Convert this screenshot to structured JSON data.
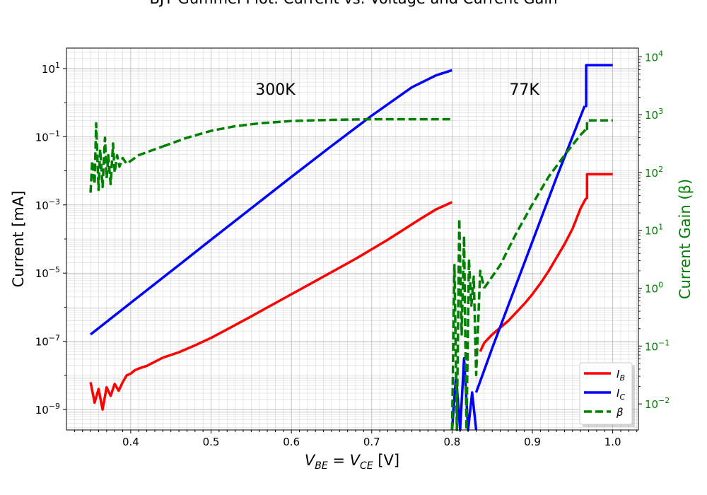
{
  "chart_data": {
    "type": "line",
    "title": "BJT Gummel Plot: Current vs. Voltage and Current Gain",
    "xlabel": "V_BE = V_CE [V]",
    "ylabel_left": "Current [mA]",
    "ylabel_right": "Current Gain (β)",
    "xlim": [
      0.32,
      1.032
    ],
    "ylim_left_log10": [
      -9.6,
      1.6
    ],
    "ylim_right_log10": [
      -2.45,
      4.15
    ],
    "x_scale": "linear",
    "y_scale": "log",
    "grid": true,
    "legend_position": "bottom-right",
    "x_ticks": [
      "0.4",
      "0.5",
      "0.6",
      "0.7",
      "0.8",
      "0.9",
      "1.0"
    ],
    "y_left_ticks": [
      {
        "exp": "1",
        "value": 1
      },
      {
        "exp": "−1",
        "value": -1
      },
      {
        "exp": "−3",
        "value": -3
      },
      {
        "exp": "−5",
        "value": -5
      },
      {
        "exp": "−7",
        "value": -7
      },
      {
        "exp": "−9",
        "value": -9
      }
    ],
    "y_right_ticks": [
      {
        "exp": "4",
        "value": 4
      },
      {
        "exp": "3",
        "value": 3
      },
      {
        "exp": "2",
        "value": 2
      },
      {
        "exp": "1",
        "value": 1
      },
      {
        "exp": "0",
        "value": 0
      },
      {
        "exp": "−1",
        "value": -1
      },
      {
        "exp": "−2",
        "value": -2
      }
    ],
    "annotations": [
      {
        "text": "300K",
        "x": 0.58,
        "y_log10": 0.4
      },
      {
        "text": "77K",
        "x": 0.89,
        "y_log10": 0.4
      }
    ],
    "series": [
      {
        "name": "I_B",
        "label_main": "I",
        "label_sub": "B",
        "axis": "left",
        "color": "#ff0000",
        "dash": "solid",
        "segments": [
          {
            "note": "300K noisy",
            "x": [
              0.35,
              0.355,
              0.36,
              0.365,
              0.37,
              0.375,
              0.38,
              0.385,
              0.39,
              0.395,
              0.4,
              0.405,
              0.41,
              0.42,
              0.43,
              0.44
            ],
            "y_log10": [
              -8.2,
              -8.8,
              -8.4,
              -9.0,
              -8.35,
              -8.6,
              -8.25,
              -8.45,
              -8.2,
              -8.0,
              -7.95,
              -7.85,
              -7.8,
              -7.72,
              -7.6,
              -7.48
            ]
          },
          {
            "note": "300K",
            "x": [
              0.44,
              0.46,
              0.48,
              0.5,
              0.52,
              0.55,
              0.58,
              0.6,
              0.62,
              0.65,
              0.68,
              0.7,
              0.72,
              0.74,
              0.76,
              0.78,
              0.8
            ],
            "y_log10": [
              -7.48,
              -7.32,
              -7.12,
              -6.9,
              -6.65,
              -6.27,
              -5.88,
              -5.62,
              -5.36,
              -4.97,
              -4.58,
              -4.3,
              -4.02,
              -3.72,
              -3.42,
              -3.13,
              -2.92
            ]
          },
          {
            "note": "77K",
            "x": [
              0.835,
              0.84,
              0.85,
              0.86,
              0.87,
              0.88,
              0.89,
              0.9,
              0.91,
              0.92,
              0.93,
              0.94,
              0.95,
              0.96,
              0.967
            ],
            "y_log10": [
              -7.3,
              -7.05,
              -6.8,
              -6.6,
              -6.4,
              -6.15,
              -5.9,
              -5.62,
              -5.3,
              -4.95,
              -4.55,
              -4.15,
              -3.7,
              -3.1,
              -2.8
            ]
          },
          {
            "note": "77K step",
            "x": [
              0.967,
              0.968,
              0.968,
              1.0
            ],
            "y_log10": [
              -2.8,
              -2.8,
              -2.1,
              -2.1
            ]
          }
        ]
      },
      {
        "name": "I_C",
        "label_main": "I",
        "label_sub": "C",
        "axis": "left",
        "color": "#0000ff",
        "dash": "solid",
        "segments": [
          {
            "note": "300K",
            "x": [
              0.35,
              0.4,
              0.45,
              0.5,
              0.55,
              0.6,
              0.65,
              0.7,
              0.75,
              0.78,
              0.8
            ],
            "y_log10": [
              -6.8,
              -5.87,
              -4.95,
              -4.02,
              -3.1,
              -2.18,
              -1.27,
              -0.38,
              0.45,
              0.8,
              0.95
            ]
          },
          {
            "note": "77K noisy",
            "x": [
              0.8,
              0.805,
              0.81,
              0.815,
              0.82,
              0.825,
              0.83
            ],
            "y_log10": [
              -9.6,
              -8.0,
              -9.6,
              -7.5,
              -9.6,
              -8.5,
              -9.6
            ]
          },
          {
            "note": "77K",
            "x": [
              0.83,
              0.85,
              0.87,
              0.89,
              0.91,
              0.93,
              0.95,
              0.965
            ],
            "y_log10": [
              -8.5,
              -7.2,
              -5.95,
              -4.7,
              -3.45,
              -2.2,
              -1.0,
              -0.1
            ]
          },
          {
            "note": "77K step",
            "x": [
              0.965,
              0.967,
              0.967,
              1.0
            ],
            "y_log10": [
              -0.1,
              -0.1,
              1.1,
              1.1
            ]
          }
        ]
      },
      {
        "name": "β",
        "label_main": "β",
        "label_sub": "",
        "axis": "right",
        "color": "#008000",
        "dash": "dashed",
        "segments": [
          {
            "note": "300K noisy",
            "x": [
              0.35,
              0.352,
              0.355,
              0.357,
              0.36,
              0.362,
              0.365,
              0.368,
              0.37,
              0.372,
              0.375,
              0.378,
              0.38,
              0.383,
              0.386,
              0.39,
              0.395,
              0.4,
              0.41,
              0.42,
              0.44
            ],
            "y_log10": [
              1.65,
              2.2,
              1.8,
              2.85,
              1.7,
              2.4,
              1.75,
              2.6,
              1.9,
              2.3,
              1.8,
              2.5,
              2.0,
              2.3,
              2.1,
              2.25,
              2.15,
              2.2,
              2.3,
              2.35,
              2.45
            ]
          },
          {
            "note": "300K",
            "x": [
              0.44,
              0.47,
              0.5,
              0.53,
              0.56,
              0.6,
              0.65,
              0.7,
              0.75,
              0.8
            ],
            "y_log10": [
              2.45,
              2.6,
              2.72,
              2.8,
              2.85,
              2.89,
              2.91,
              2.92,
              2.92,
              2.92
            ]
          },
          {
            "note": "77K noisy",
            "x": [
              0.8,
              0.803,
              0.806,
              0.809,
              0.812,
              0.815,
              0.818,
              0.821,
              0.824,
              0.827,
              0.83,
              0.835,
              0.84
            ],
            "y_log10": [
              -2.45,
              0.4,
              -2.45,
              1.2,
              -0.8,
              0.9,
              -2.45,
              0.5,
              -0.3,
              0.2,
              -1.5,
              0.3,
              0.0
            ]
          },
          {
            "note": "77K",
            "x": [
              0.84,
              0.86,
              0.88,
              0.9,
              0.92,
              0.94,
              0.96,
              0.967
            ],
            "y_log10": [
              0.0,
              0.4,
              0.95,
              1.45,
              1.92,
              2.3,
              2.65,
              2.75
            ]
          },
          {
            "note": "77K step",
            "x": [
              0.967,
              0.968,
              0.968,
              1.0
            ],
            "y_log10": [
              2.75,
              2.75,
              2.9,
              2.9
            ]
          }
        ]
      }
    ]
  }
}
